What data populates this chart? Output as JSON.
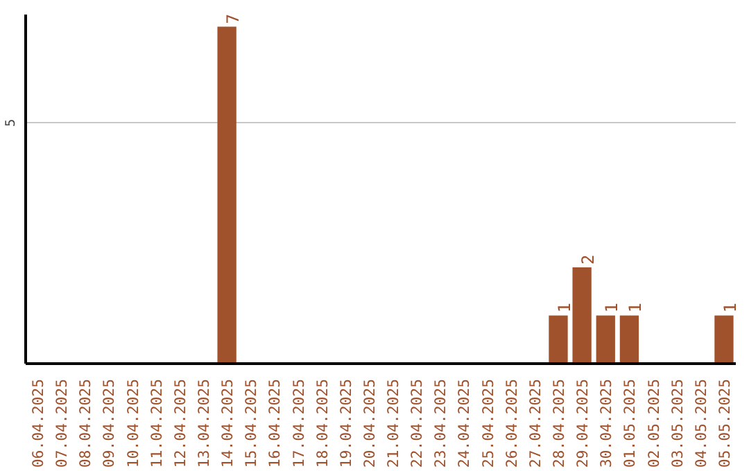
{
  "chart_data": {
    "type": "bar",
    "categories": [
      "06.04.2025",
      "07.04.2025",
      "08.04.2025",
      "09.04.2025",
      "10.04.2025",
      "11.04.2025",
      "12.04.2025",
      "13.04.2025",
      "14.04.2025",
      "15.04.2025",
      "16.04.2025",
      "17.04.2025",
      "18.04.2025",
      "19.04.2025",
      "20.04.2025",
      "21.04.2025",
      "22.04.2025",
      "23.04.2025",
      "24.04.2025",
      "25.04.2025",
      "26.04.2025",
      "27.04.2025",
      "28.04.2025",
      "29.04.2025",
      "30.04.2025",
      "01.05.2025",
      "02.05.2025",
      "03.05.2025",
      "04.05.2025",
      "05.05.2025"
    ],
    "values": [
      0,
      0,
      0,
      0,
      0,
      0,
      0,
      0,
      7,
      0,
      0,
      0,
      0,
      0,
      0,
      0,
      0,
      0,
      0,
      0,
      0,
      0,
      1,
      2,
      1,
      1,
      0,
      0,
      0,
      1
    ],
    "value_labels": [
      null,
      null,
      null,
      null,
      null,
      null,
      null,
      null,
      "7",
      null,
      null,
      null,
      null,
      null,
      null,
      null,
      null,
      null,
      null,
      null,
      null,
      null,
      "1",
      "2",
      "1",
      "1",
      null,
      null,
      null,
      "1"
    ],
    "color": "#a0522d",
    "ylim": [
      0,
      7.25
    ],
    "yticks": [
      5
    ],
    "grid": "y"
  }
}
